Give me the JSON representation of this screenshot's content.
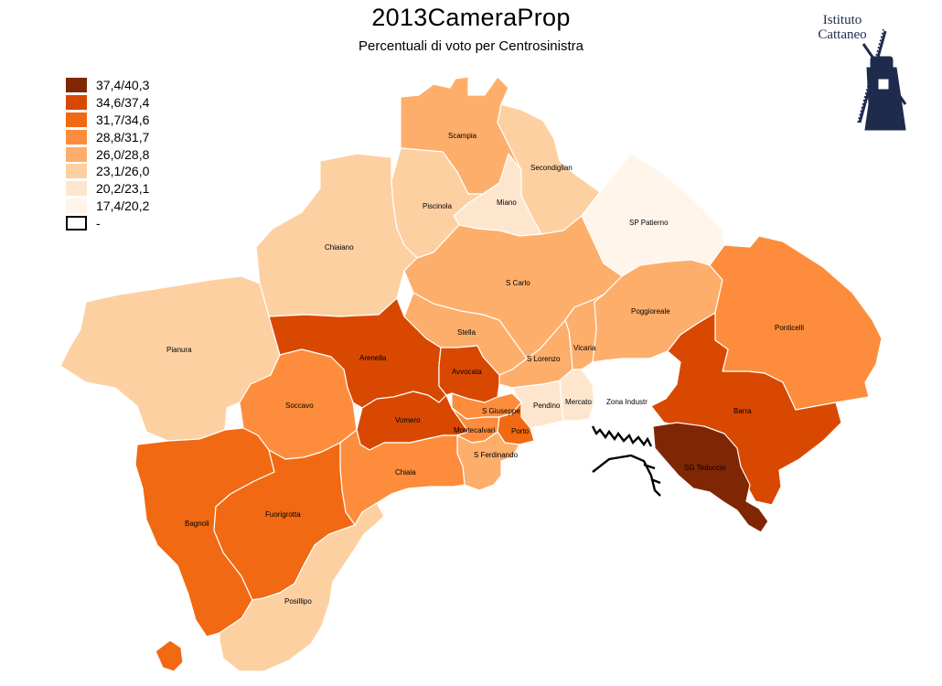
{
  "title": "2013CameraProp",
  "subtitle": "Percentuali di voto per Centrosinistra",
  "logo": {
    "line1": "Istituto",
    "line2": "Cattaneo",
    "color": "#1f2b4d"
  },
  "legend": [
    {
      "label": "37,4/40,3",
      "color": "#7f2704"
    },
    {
      "label": "34,6/37,4",
      "color": "#d94801"
    },
    {
      "label": "31,7/34,6",
      "color": "#f16913"
    },
    {
      "label": "28,8/31,7",
      "color": "#fd8d3c"
    },
    {
      "label": "26,0/28,8",
      "color": "#fdae6b"
    },
    {
      "label": "23,1/26,0",
      "color": "#fdd0a2"
    },
    {
      "label": "20,2/23,1",
      "color": "#fee6ce"
    },
    {
      "label": "17,4/20,2",
      "color": "#fff5eb"
    },
    {
      "label": "-",
      "color": "#ffffff"
    }
  ],
  "districts": [
    {
      "name": "Scampia",
      "class": 4
    },
    {
      "name": "Secondiglian",
      "class": 5
    },
    {
      "name": "Miano",
      "class": 6
    },
    {
      "name": "Piscinola",
      "class": 5
    },
    {
      "name": "Chiaiano",
      "class": 5
    },
    {
      "name": "SP Patierno",
      "class": 7
    },
    {
      "name": "S Carlo",
      "class": 4
    },
    {
      "name": "Poggioreale",
      "class": 4
    },
    {
      "name": "Ponticelli",
      "class": 3
    },
    {
      "name": "Pianura",
      "class": 5
    },
    {
      "name": "Arenella",
      "class": 1
    },
    {
      "name": "Stella",
      "class": 4
    },
    {
      "name": "Vicaria",
      "class": 4
    },
    {
      "name": "S Lorenzo",
      "class": 4
    },
    {
      "name": "Avvocata",
      "class": 1
    },
    {
      "name": "Soccavo",
      "class": 3
    },
    {
      "name": "Vomero",
      "class": 1
    },
    {
      "name": "S Giuseppe",
      "class": 3
    },
    {
      "name": "Pendino",
      "class": 6
    },
    {
      "name": "Mercato",
      "class": 6
    },
    {
      "name": "Zona Industr",
      "class": 8
    },
    {
      "name": "Barra",
      "class": 1
    },
    {
      "name": "Montecalvari",
      "class": 3
    },
    {
      "name": "Porto",
      "class": 2
    },
    {
      "name": "S Ferdinando",
      "class": 4
    },
    {
      "name": "SG Teduccio",
      "class": 0
    },
    {
      "name": "Chiaia",
      "class": 3
    },
    {
      "name": "Bagnoli",
      "class": 2
    },
    {
      "name": "Fuorigrotta",
      "class": 2
    },
    {
      "name": "Posillipo",
      "class": 5
    }
  ]
}
